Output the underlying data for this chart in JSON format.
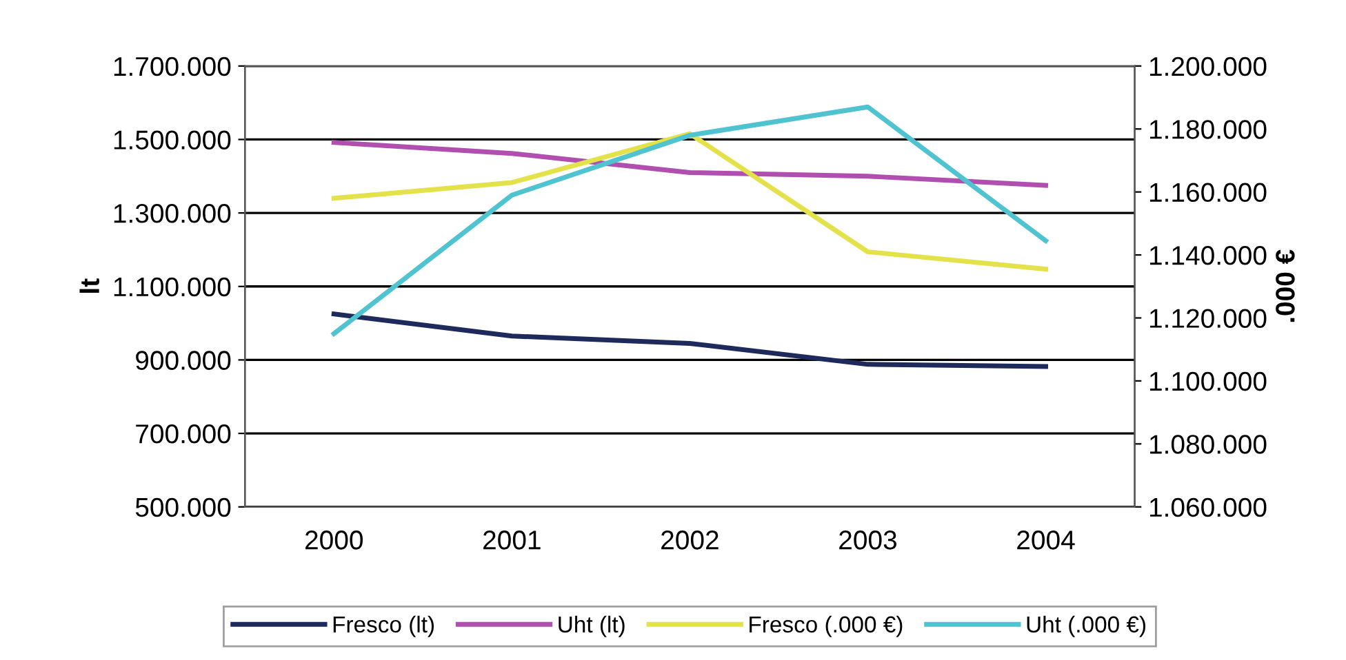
{
  "chart_data": {
    "type": "line",
    "ylabel": "lt",
    "y2label": ".000 €",
    "categories": [
      "2000",
      "2001",
      "2002",
      "2003",
      "2004"
    ],
    "series": [
      {
        "name": "Fresco (lt)",
        "color": "#1f2a5c",
        "values": [
          1025000,
          965000,
          945000,
          888000,
          882000
        ]
      },
      {
        "name": "Uht (lt)",
        "color": "#b04fb0",
        "values": [
          1492000,
          1462000,
          1410000,
          1400000,
          1375000
        ]
      },
      {
        "name": "Fresco (.000 €)",
        "color": "#e3e24a",
        "axis": "y2",
        "values": [
          1158000,
          1163000,
          1178500,
          1141000,
          1135500
        ]
      },
      {
        "name": "Uht (.000 €)",
        "color": "#4fc3d0",
        "axis": "y2",
        "values": [
          1115000,
          1159000,
          1178000,
          1187000,
          1144500
        ]
      }
    ],
    "ylim": [
      500000,
      1700000
    ],
    "yticks": [
      {
        "value": 500000,
        "label": "500.000"
      },
      {
        "value": 700000,
        "label": "700.000"
      },
      {
        "value": 900000,
        "label": "900.000"
      },
      {
        "value": 1100000,
        "label": "1.100.000"
      },
      {
        "value": 1300000,
        "label": "1.300.000"
      },
      {
        "value": 1500000,
        "label": "1.500.000"
      },
      {
        "value": 1700000,
        "label": "1.700.000"
      }
    ],
    "y2lim": [
      1060000,
      1200000
    ],
    "y2ticks": [
      {
        "value": 1060000,
        "label": "1.060.000"
      },
      {
        "value": 1080000,
        "label": "1.080.000"
      },
      {
        "value": 1100000,
        "label": "1.100.000"
      },
      {
        "value": 1120000,
        "label": "1.120.000"
      },
      {
        "value": 1140000,
        "label": "1.140.000"
      },
      {
        "value": 1160000,
        "label": "1.160.000"
      },
      {
        "value": 1180000,
        "label": "1.180.000"
      },
      {
        "value": 1200000,
        "label": "1.200.000"
      }
    ],
    "grid": "y",
    "legend": "bottom",
    "marker": "none",
    "line_style": "solid"
  }
}
